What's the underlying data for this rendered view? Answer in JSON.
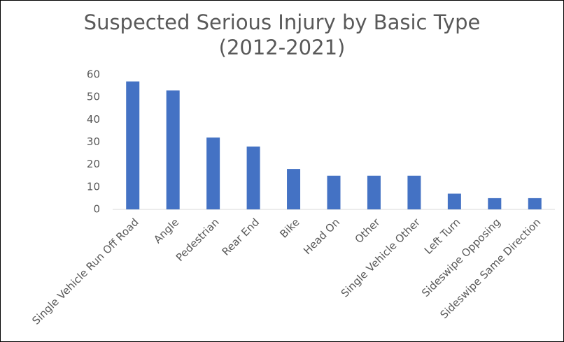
{
  "chart_data": {
    "type": "bar",
    "title": "Suspected Serious Injury by Basic Type (2012-2021)",
    "categories": [
      "Single Vehicle Run Off Road",
      "Angle",
      "Pedestrian",
      "Rear End",
      "Bike",
      "Head On",
      "Other",
      "Single Vehicle Other",
      "Left Turn",
      "Sideswipe Opposing",
      "Sideswipe Same Direction"
    ],
    "values": [
      57,
      53,
      32,
      28,
      18,
      15,
      15,
      15,
      7,
      5,
      5
    ],
    "color": "#4472c4",
    "ylim": [
      0,
      60
    ],
    "yticks": [
      0,
      10,
      20,
      30,
      40,
      50,
      60
    ],
    "grid": false
  }
}
